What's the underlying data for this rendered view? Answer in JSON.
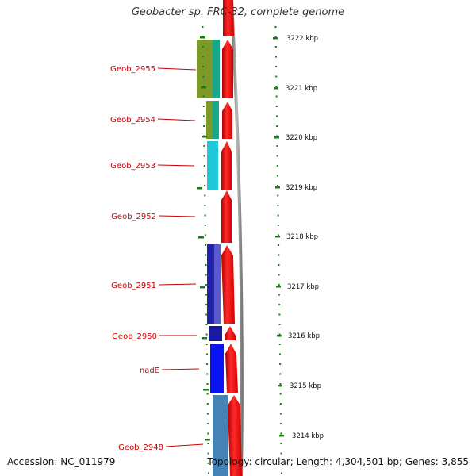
{
  "title": "Geobacter sp. FRC-32, complete genome",
  "accession": "Accession: NC_011979",
  "topology": "Topology: circular; Length: 4,304,501 bp; Genes: 3,855",
  "colors": {
    "gene_label": "#cc0000",
    "label_line": "#cc0000",
    "tick": "#1a7a1a",
    "cds_arrow": "#ff0000",
    "backbone": "#808080"
  },
  "ticks": [
    "3222 kbp",
    "3221 kbp",
    "3220 kbp",
    "3219 kbp",
    "3218 kbp",
    "3217 kbp",
    "3216 kbp",
    "3215 kbp",
    "3214 kbp"
  ],
  "genes": [
    "Geob_2955",
    "Geob_2954",
    "Geob_2953",
    "Geob_2952",
    "Geob_2951",
    "Geob_2950",
    "nadE",
    "Geob_2948"
  ]
}
